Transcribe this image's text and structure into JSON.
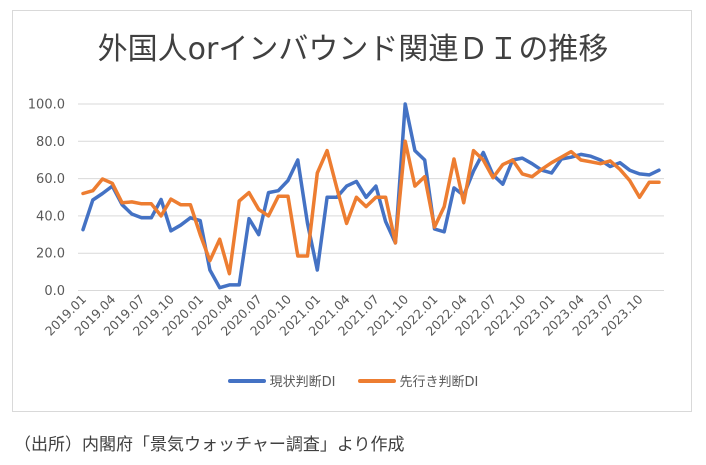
{
  "chart_data": {
    "type": "line",
    "title": "外国人orインバウンド関連ＤＩの推移",
    "xlabel": "",
    "ylabel": "",
    "ylim": [
      0,
      100
    ],
    "yticks": [
      "0.0",
      "20.0",
      "40.0",
      "60.0",
      "80.0",
      "100.0"
    ],
    "ytick_values": [
      0,
      20,
      40,
      60,
      80,
      100
    ],
    "grid": true,
    "legend_position": "bottom",
    "x": [
      "2019.01",
      "2019.02",
      "2019.03",
      "2019.04",
      "2019.05",
      "2019.06",
      "2019.07",
      "2019.08",
      "2019.09",
      "2019.10",
      "2019.11",
      "2019.12",
      "2020.01",
      "2020.02",
      "2020.03",
      "2020.04",
      "2020.05",
      "2020.06",
      "2020.07",
      "2020.08",
      "2020.09",
      "2020.10",
      "2020.11",
      "2020.12",
      "2021.01",
      "2021.02",
      "2021.03",
      "2021.04",
      "2021.05",
      "2021.06",
      "2021.07",
      "2021.08",
      "2021.09",
      "2021.10",
      "2021.11",
      "2021.12",
      "2022.01",
      "2022.02",
      "2022.03",
      "2022.04",
      "2022.05",
      "2022.06",
      "2022.07",
      "2022.08",
      "2022.09",
      "2022.10",
      "2022.11",
      "2022.12",
      "2023.01",
      "2023.02",
      "2023.03",
      "2023.04",
      "2023.05",
      "2023.06",
      "2023.07",
      "2023.08",
      "2023.09",
      "2023.10",
      "2023.11",
      "2023.12"
    ],
    "xtick_labels": [
      "2019.01",
      "2019.04",
      "2019.07",
      "2019.10",
      "2020.01",
      "2020.04",
      "2020.07",
      "2020.10",
      "2021.01",
      "2021.04",
      "2021.07",
      "2021.10",
      "2022.01",
      "2022.04",
      "2022.07",
      "2022.10",
      "2023.01",
      "2023.04",
      "2023.07",
      "2023.10"
    ],
    "series": [
      {
        "name": "現状判断DI",
        "color": "#4472c4",
        "values": [
          32.6,
          48.5,
          52.0,
          56.0,
          46.0,
          41.0,
          39.0,
          39.0,
          48.8,
          32.0,
          35.0,
          39.0,
          37.5,
          11.0,
          1.5,
          3.0,
          3.0,
          38.5,
          30.0,
          52.5,
          53.5,
          59.0,
          70.0,
          36.0,
          11.0,
          50.0,
          50.0,
          56.0,
          58.5,
          50.0,
          56.0,
          37.0,
          25.5,
          100.0,
          75.0,
          70.0,
          33.0,
          31.5,
          55.0,
          51.0,
          64.0,
          74.0,
          62.0,
          57.0,
          70.0,
          71.0,
          68.0,
          64.5,
          63.0,
          70.5,
          71.5,
          73.0,
          72.0,
          70.0,
          66.5,
          68.5,
          64.5,
          62.5,
          62.0,
          64.5
        ]
      },
      {
        "name": "先行き判断DI",
        "color": "#ed7d31",
        "values": [
          52.0,
          53.5,
          59.8,
          57.5,
          47.0,
          47.5,
          46.5,
          46.5,
          40.0,
          49.0,
          46.0,
          46.0,
          30.0,
          16.0,
          27.5,
          9.0,
          48.0,
          52.5,
          43.5,
          40.0,
          50.5,
          50.5,
          18.5,
          18.5,
          63.0,
          75.0,
          55.0,
          36.0,
          50.0,
          45.0,
          50.0,
          50.0,
          25.5,
          80.0,
          56.0,
          61.0,
          34.0,
          45.0,
          70.5,
          47.0,
          75.0,
          70.0,
          60.5,
          67.5,
          70.0,
          62.5,
          61.0,
          65.0,
          68.5,
          71.5,
          74.5,
          70.0,
          69.0,
          68.0,
          69.5,
          65.0,
          59.0,
          50.0,
          58.0,
          58.0
        ]
      }
    ]
  },
  "legend": {
    "items": [
      "現状判断DI",
      "先行き判断DI"
    ]
  },
  "source_note": "（出所）内閣府「景気ウォッチャー調査」より作成"
}
